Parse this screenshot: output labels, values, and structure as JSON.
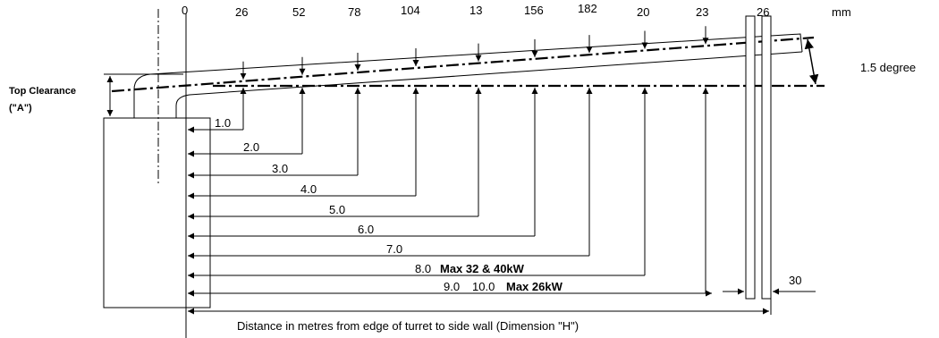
{
  "labels": {
    "top_clearance_line1": "Top Clearance",
    "top_clearance_line2": "(\"A\")",
    "unit": "mm",
    "angle": "1.5 degree",
    "wall_gap": "30",
    "axis_caption": "Distance in metres from edge of turret to side wall (Dimension \"H\")"
  },
  "top_values": [
    "0",
    "26",
    "52",
    "78",
    "104",
    "13",
    "156",
    "182",
    "20",
    "23",
    "26"
  ],
  "distances": [
    {
      "label": "1.0",
      "note": ""
    },
    {
      "label": "2.0",
      "note": ""
    },
    {
      "label": "3.0",
      "note": ""
    },
    {
      "label": "4.0",
      "note": ""
    },
    {
      "label": "5.0",
      "note": ""
    },
    {
      "label": "6.0",
      "note": ""
    },
    {
      "label": "7.0",
      "note": ""
    },
    {
      "label": "8.0",
      "note": "Max 32 & 40kW"
    },
    {
      "label": "9.0",
      "note": ""
    },
    {
      "label": "10.0",
      "note": "Max 26kW"
    }
  ]
}
